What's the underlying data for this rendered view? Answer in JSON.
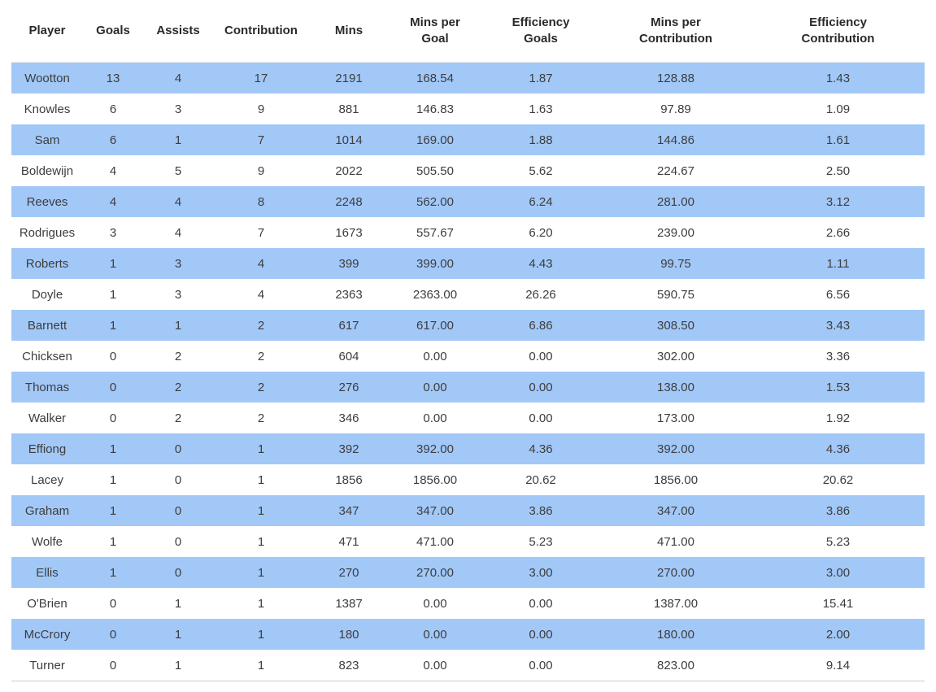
{
  "chart_data": {
    "type": "table",
    "title": "",
    "columns": [
      {
        "key": "player",
        "label": "Player"
      },
      {
        "key": "goals",
        "label": "Goals"
      },
      {
        "key": "assists",
        "label": "Assists"
      },
      {
        "key": "contribution",
        "label": "Contribution"
      },
      {
        "key": "mins",
        "label": "Mins"
      },
      {
        "key": "mins_per_goal",
        "label": "Mins per\nGoal"
      },
      {
        "key": "efficiency_goals",
        "label": "Efficiency\nGoals"
      },
      {
        "key": "mins_per_contribution",
        "label": "Mins per\nContribution"
      },
      {
        "key": "efficiency_contribution",
        "label": "Efficiency\nContribution"
      }
    ],
    "rows": [
      [
        "Wootton",
        "13",
        "4",
        "17",
        "2191",
        "168.54",
        "1.87",
        "128.88",
        "1.43"
      ],
      [
        "Knowles",
        "6",
        "3",
        "9",
        "881",
        "146.83",
        "1.63",
        "97.89",
        "1.09"
      ],
      [
        "Sam",
        "6",
        "1",
        "7",
        "1014",
        "169.00",
        "1.88",
        "144.86",
        "1.61"
      ],
      [
        "Boldewijn",
        "4",
        "5",
        "9",
        "2022",
        "505.50",
        "5.62",
        "224.67",
        "2.50"
      ],
      [
        "Reeves",
        "4",
        "4",
        "8",
        "2248",
        "562.00",
        "6.24",
        "281.00",
        "3.12"
      ],
      [
        "Rodrigues",
        "3",
        "4",
        "7",
        "1673",
        "557.67",
        "6.20",
        "239.00",
        "2.66"
      ],
      [
        "Roberts",
        "1",
        "3",
        "4",
        "399",
        "399.00",
        "4.43",
        "99.75",
        "1.11"
      ],
      [
        "Doyle",
        "1",
        "3",
        "4",
        "2363",
        "2363.00",
        "26.26",
        "590.75",
        "6.56"
      ],
      [
        "Barnett",
        "1",
        "1",
        "2",
        "617",
        "617.00",
        "6.86",
        "308.50",
        "3.43"
      ],
      [
        "Chicksen",
        "0",
        "2",
        "2",
        "604",
        "0.00",
        "0.00",
        "302.00",
        "3.36"
      ],
      [
        "Thomas",
        "0",
        "2",
        "2",
        "276",
        "0.00",
        "0.00",
        "138.00",
        "1.53"
      ],
      [
        "Walker",
        "0",
        "2",
        "2",
        "346",
        "0.00",
        "0.00",
        "173.00",
        "1.92"
      ],
      [
        "Effiong",
        "1",
        "0",
        "1",
        "392",
        "392.00",
        "4.36",
        "392.00",
        "4.36"
      ],
      [
        "Lacey",
        "1",
        "0",
        "1",
        "1856",
        "1856.00",
        "20.62",
        "1856.00",
        "20.62"
      ],
      [
        "Graham",
        "1",
        "0",
        "1",
        "347",
        "347.00",
        "3.86",
        "347.00",
        "3.86"
      ],
      [
        "Wolfe",
        "1",
        "0",
        "1",
        "471",
        "471.00",
        "5.23",
        "471.00",
        "5.23"
      ],
      [
        "Ellis",
        "1",
        "0",
        "1",
        "270",
        "270.00",
        "3.00",
        "270.00",
        "3.00"
      ],
      [
        "O'Brien",
        "0",
        "1",
        "1",
        "1387",
        "0.00",
        "0.00",
        "1387.00",
        "15.41"
      ],
      [
        "McCrory",
        "0",
        "1",
        "1",
        "180",
        "0.00",
        "0.00",
        "180.00",
        "2.00"
      ],
      [
        "Turner",
        "0",
        "1",
        "1",
        "823",
        "0.00",
        "0.00",
        "823.00",
        "9.14"
      ]
    ],
    "colors": {
      "stripe_row": "#a2c8f8",
      "body_text": "#3d3d3d",
      "header_text": "#2a2a2a",
      "bottom_border": "#c8c8c8"
    },
    "layout_hints": {
      "stripe_pattern": "odd rows (1st, 3rd, 5th, ...) highlighted blue",
      "alignment": "all cells centered"
    }
  }
}
